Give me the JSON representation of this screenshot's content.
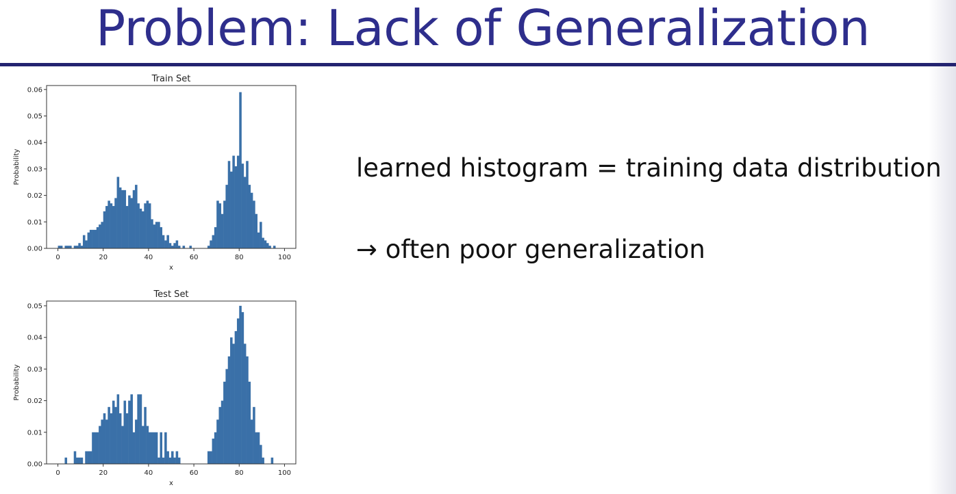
{
  "slide": {
    "title": "Problem: Lack of Generalization",
    "bullets": [
      "learned histogram = training data distribution",
      "→ often poor generalization"
    ]
  },
  "colors": {
    "title": "#2e2e8c",
    "rule": "#232370",
    "bars": "#3a70a8"
  },
  "chart_data": [
    {
      "type": "bar",
      "title": "Train Set",
      "xlabel": "x",
      "ylabel": "Probability",
      "bin_width": 1,
      "xlim": [
        -5,
        105
      ],
      "ylim": [
        0,
        0.0615
      ],
      "xticks": [
        0,
        20,
        40,
        60,
        80,
        100
      ],
      "xtick_labels": [
        "0",
        "20",
        "40",
        "60",
        "80",
        "100"
      ],
      "yticks": [
        0,
        0.01,
        0.02,
        0.03,
        0.04,
        0.05,
        0.06
      ],
      "ytick_labels": [
        "0.00",
        "0.01",
        "0.02",
        "0.03",
        "0.04",
        "0.05",
        "0.06"
      ],
      "bins": [
        [
          0,
          0.001
        ],
        [
          1,
          0.001
        ],
        [
          3,
          0.001
        ],
        [
          4,
          0.001
        ],
        [
          5,
          0.001
        ],
        [
          7,
          0.001
        ],
        [
          8,
          0.001
        ],
        [
          9,
          0.002
        ],
        [
          10,
          0.001
        ],
        [
          11,
          0.005
        ],
        [
          12,
          0.003
        ],
        [
          13,
          0.006
        ],
        [
          14,
          0.007
        ],
        [
          15,
          0.007
        ],
        [
          16,
          0.007
        ],
        [
          17,
          0.008
        ],
        [
          18,
          0.009
        ],
        [
          19,
          0.01
        ],
        [
          20,
          0.014
        ],
        [
          21,
          0.016
        ],
        [
          22,
          0.018
        ],
        [
          23,
          0.017
        ],
        [
          24,
          0.016
        ],
        [
          25,
          0.019
        ],
        [
          26,
          0.027
        ],
        [
          27,
          0.023
        ],
        [
          28,
          0.022
        ],
        [
          29,
          0.022
        ],
        [
          30,
          0.016
        ],
        [
          31,
          0.02
        ],
        [
          32,
          0.019
        ],
        [
          33,
          0.022
        ],
        [
          34,
          0.024
        ],
        [
          35,
          0.017
        ],
        [
          36,
          0.015
        ],
        [
          37,
          0.014
        ],
        [
          38,
          0.017
        ],
        [
          39,
          0.018
        ],
        [
          40,
          0.017
        ],
        [
          41,
          0.011
        ],
        [
          42,
          0.009
        ],
        [
          43,
          0.01
        ],
        [
          44,
          0.01
        ],
        [
          45,
          0.008
        ],
        [
          46,
          0.005
        ],
        [
          47,
          0.003
        ],
        [
          48,
          0.005
        ],
        [
          49,
          0.002
        ],
        [
          50,
          0.001
        ],
        [
          51,
          0.002
        ],
        [
          52,
          0.003
        ],
        [
          53,
          0.001
        ],
        [
          55,
          0.001
        ],
        [
          58,
          0.001
        ],
        [
          66,
          0.001
        ],
        [
          67,
          0.003
        ],
        [
          68,
          0.005
        ],
        [
          69,
          0.008
        ],
        [
          70,
          0.018
        ],
        [
          71,
          0.017
        ],
        [
          72,
          0.013
        ],
        [
          73,
          0.018
        ],
        [
          74,
          0.024
        ],
        [
          75,
          0.033
        ],
        [
          76,
          0.029
        ],
        [
          77,
          0.035
        ],
        [
          78,
          0.031
        ],
        [
          79,
          0.035
        ],
        [
          80,
          0.059
        ],
        [
          81,
          0.032
        ],
        [
          82,
          0.027
        ],
        [
          83,
          0.033
        ],
        [
          84,
          0.024
        ],
        [
          85,
          0.021
        ],
        [
          86,
          0.018
        ],
        [
          87,
          0.013
        ],
        [
          88,
          0.006
        ],
        [
          89,
          0.01
        ],
        [
          90,
          0.004
        ],
        [
          91,
          0.003
        ],
        [
          92,
          0.002
        ],
        [
          93,
          0.001
        ],
        [
          95,
          0.001
        ]
      ]
    },
    {
      "type": "bar",
      "title": "Test Set",
      "xlabel": "x",
      "ylabel": "Probability",
      "bin_width": 1,
      "xlim": [
        -5,
        105
      ],
      "ylim": [
        0,
        0.0515
      ],
      "xticks": [
        0,
        20,
        40,
        60,
        80,
        100
      ],
      "xtick_labels": [
        "0",
        "20",
        "40",
        "60",
        "80",
        "100"
      ],
      "yticks": [
        0,
        0.01,
        0.02,
        0.03,
        0.04,
        0.05
      ],
      "ytick_labels": [
        "0.00",
        "0.01",
        "0.02",
        "0.03",
        "0.04",
        "0.05"
      ],
      "bins": [
        [
          3,
          0.002
        ],
        [
          7,
          0.004
        ],
        [
          8,
          0.002
        ],
        [
          9,
          0.002
        ],
        [
          10,
          0.002
        ],
        [
          12,
          0.004
        ],
        [
          13,
          0.004
        ],
        [
          14,
          0.004
        ],
        [
          15,
          0.01
        ],
        [
          16,
          0.01
        ],
        [
          17,
          0.01
        ],
        [
          18,
          0.012
        ],
        [
          19,
          0.014
        ],
        [
          20,
          0.016
        ],
        [
          21,
          0.014
        ],
        [
          22,
          0.018
        ],
        [
          23,
          0.016
        ],
        [
          24,
          0.02
        ],
        [
          25,
          0.018
        ],
        [
          26,
          0.022
        ],
        [
          27,
          0.016
        ],
        [
          28,
          0.012
        ],
        [
          29,
          0.02
        ],
        [
          30,
          0.016
        ],
        [
          31,
          0.02
        ],
        [
          32,
          0.022
        ],
        [
          33,
          0.01
        ],
        [
          34,
          0.014
        ],
        [
          35,
          0.022
        ],
        [
          36,
          0.022
        ],
        [
          37,
          0.012
        ],
        [
          38,
          0.018
        ],
        [
          39,
          0.012
        ],
        [
          40,
          0.01
        ],
        [
          41,
          0.01
        ],
        [
          42,
          0.01
        ],
        [
          43,
          0.01
        ],
        [
          44,
          0.002
        ],
        [
          45,
          0.01
        ],
        [
          46,
          0.002
        ],
        [
          47,
          0.01
        ],
        [
          48,
          0.004
        ],
        [
          49,
          0.002
        ],
        [
          50,
          0.004
        ],
        [
          51,
          0.002
        ],
        [
          52,
          0.004
        ],
        [
          53,
          0.002
        ],
        [
          66,
          0.004
        ],
        [
          67,
          0.004
        ],
        [
          68,
          0.008
        ],
        [
          69,
          0.01
        ],
        [
          70,
          0.014
        ],
        [
          71,
          0.018
        ],
        [
          72,
          0.02
        ],
        [
          73,
          0.026
        ],
        [
          74,
          0.03
        ],
        [
          75,
          0.034
        ],
        [
          76,
          0.04
        ],
        [
          77,
          0.038
        ],
        [
          78,
          0.042
        ],
        [
          79,
          0.046
        ],
        [
          80,
          0.05
        ],
        [
          81,
          0.048
        ],
        [
          82,
          0.038
        ],
        [
          83,
          0.034
        ],
        [
          84,
          0.026
        ],
        [
          85,
          0.014
        ],
        [
          86,
          0.018
        ],
        [
          87,
          0.01
        ],
        [
          88,
          0.01
        ],
        [
          89,
          0.006
        ],
        [
          90,
          0.002
        ],
        [
          94,
          0.002
        ]
      ]
    }
  ]
}
